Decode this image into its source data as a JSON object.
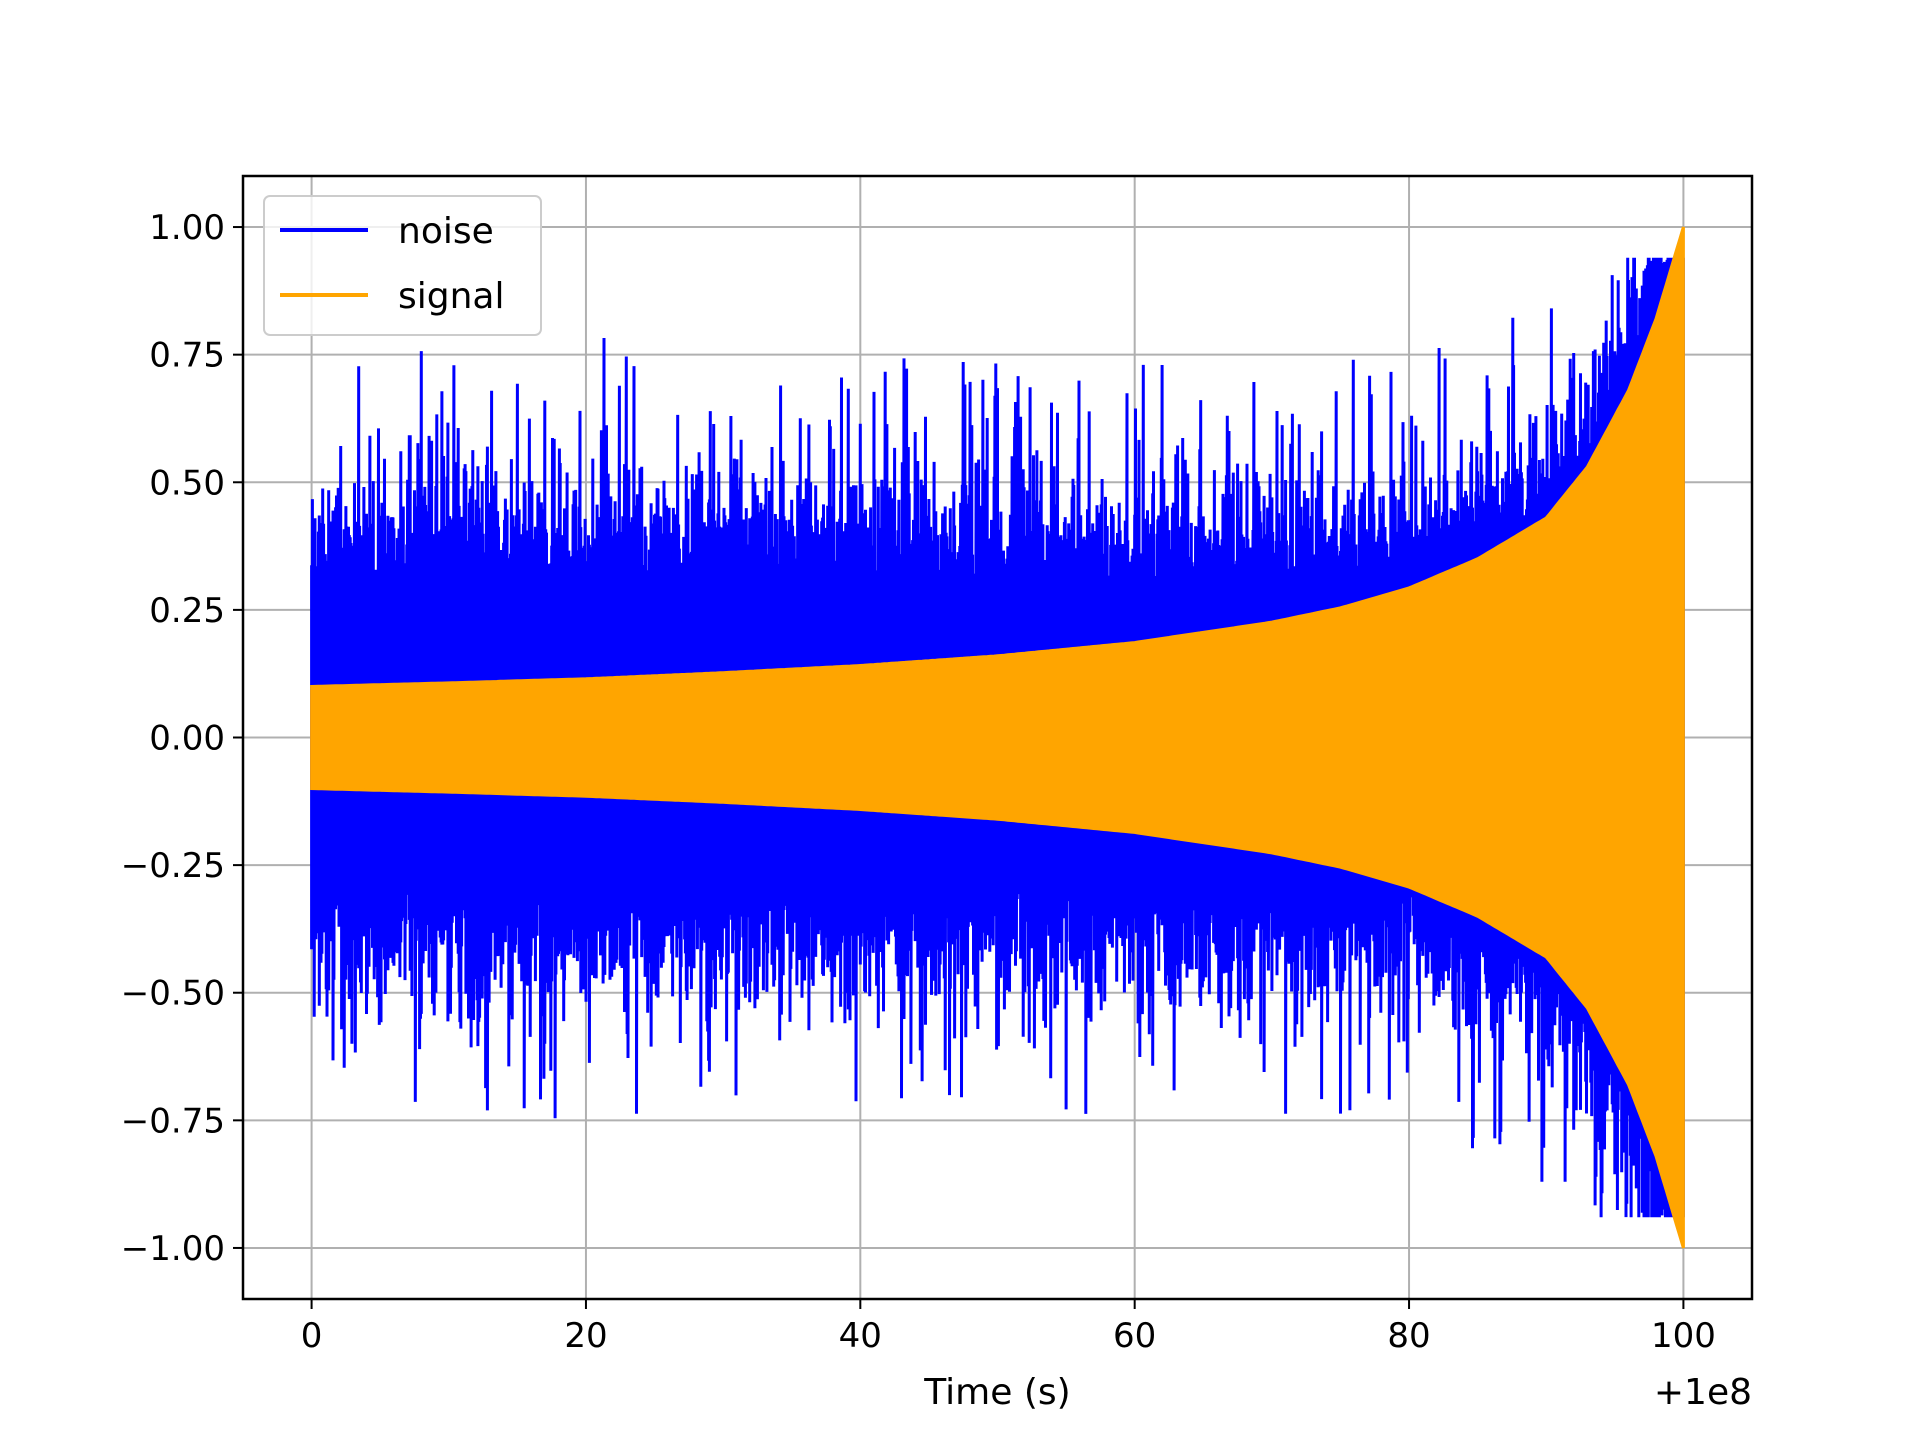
{
  "chart_data": {
    "type": "line",
    "title": "",
    "xlabel": "Time (s)",
    "ylabel": "",
    "x_offset_label": "+1e8",
    "xlim": [
      -5,
      105
    ],
    "ylim": [
      -1.1,
      1.1
    ],
    "x_ticks": [
      0,
      20,
      40,
      60,
      80,
      100
    ],
    "x_tick_labels": [
      "0",
      "20",
      "40",
      "60",
      "80",
      "100"
    ],
    "y_ticks": [
      -1.0,
      -0.75,
      -0.5,
      -0.25,
      0.0,
      0.25,
      0.5,
      0.75,
      1.0
    ],
    "y_tick_labels": [
      "−1.00",
      "−0.75",
      "−0.50",
      "−0.25",
      "0.00",
      "0.25",
      "0.50",
      "0.75",
      "1.00"
    ],
    "grid": true,
    "legend_position": "top-left",
    "series": [
      {
        "name": "noise",
        "color": "#0000ff",
        "description_values": {
          "x_range": [
            0,
            100
          ],
          "typical_amplitude": 0.5,
          "peak_max": 0.94,
          "peak_min": -0.94
        }
      },
      {
        "name": "signal",
        "color": "#ffa500",
        "envelope": {
          "x": [
            0,
            10,
            20,
            30,
            40,
            50,
            60,
            70,
            75,
            80,
            85,
            90,
            93,
            96,
            98,
            100
          ],
          "amplitude": [
            0.1,
            0.107,
            0.115,
            0.127,
            0.141,
            0.16,
            0.186,
            0.226,
            0.254,
            0.293,
            0.35,
            0.43,
            0.53,
            0.68,
            0.82,
            1.0
          ]
        }
      }
    ]
  }
}
